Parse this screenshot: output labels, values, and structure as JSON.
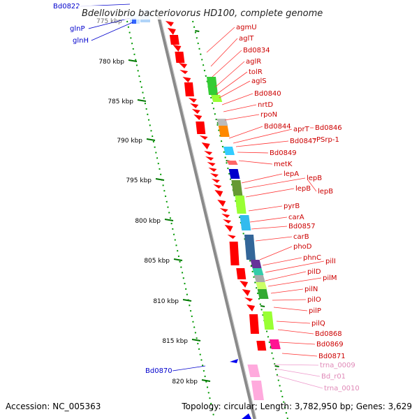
{
  "title": "Bdellovibrio bacteriovorus HD100, complete genome",
  "accession": "Accession: NC_005363",
  "topology": "Topology: circular; Length: 3,782,950 bp; Genes: 3,629",
  "scale": {
    "partial_label": "775 kbp",
    "ticks": [
      "780 kbp",
      "785 kbp",
      "790 kbp",
      "795 kbp",
      "800 kbp",
      "805 kbp",
      "810 kbp",
      "815 kbp",
      "820 kbp"
    ]
  },
  "colors": {
    "gene_red": "#ff0000",
    "label_red": "#cc0000",
    "label_blue": "#0000cc",
    "label_pink": "#e08ab8",
    "tick_green": "#007700",
    "backbone": "#888888"
  },
  "labels": {
    "left_blue": [
      "Bd0822",
      "glnP",
      "glnH",
      "Bd0870"
    ],
    "right_red": [
      "agmU",
      "aglT",
      "Bd0834",
      "aglR",
      "tolR",
      "aglS",
      "Bd0840",
      "nrtD",
      "rpoN",
      "Bd0844",
      "aprT",
      "Bd0846",
      "Bd0847",
      "PSrp-1",
      "Bd0849",
      "metK",
      "lepA",
      "lepB",
      "lepB",
      "lepB",
      "pyrB",
      "carA",
      "Bd0857",
      "carB",
      "phoD",
      "phnC",
      "pilI",
      "pilD",
      "pilM",
      "pilN",
      "pilO",
      "pilP",
      "pilQ",
      "Bd0868",
      "Bd0869",
      "Bd0871"
    ],
    "right_pink": [
      "trna_0009",
      "Bd_r01",
      "trna_0010"
    ]
  }
}
